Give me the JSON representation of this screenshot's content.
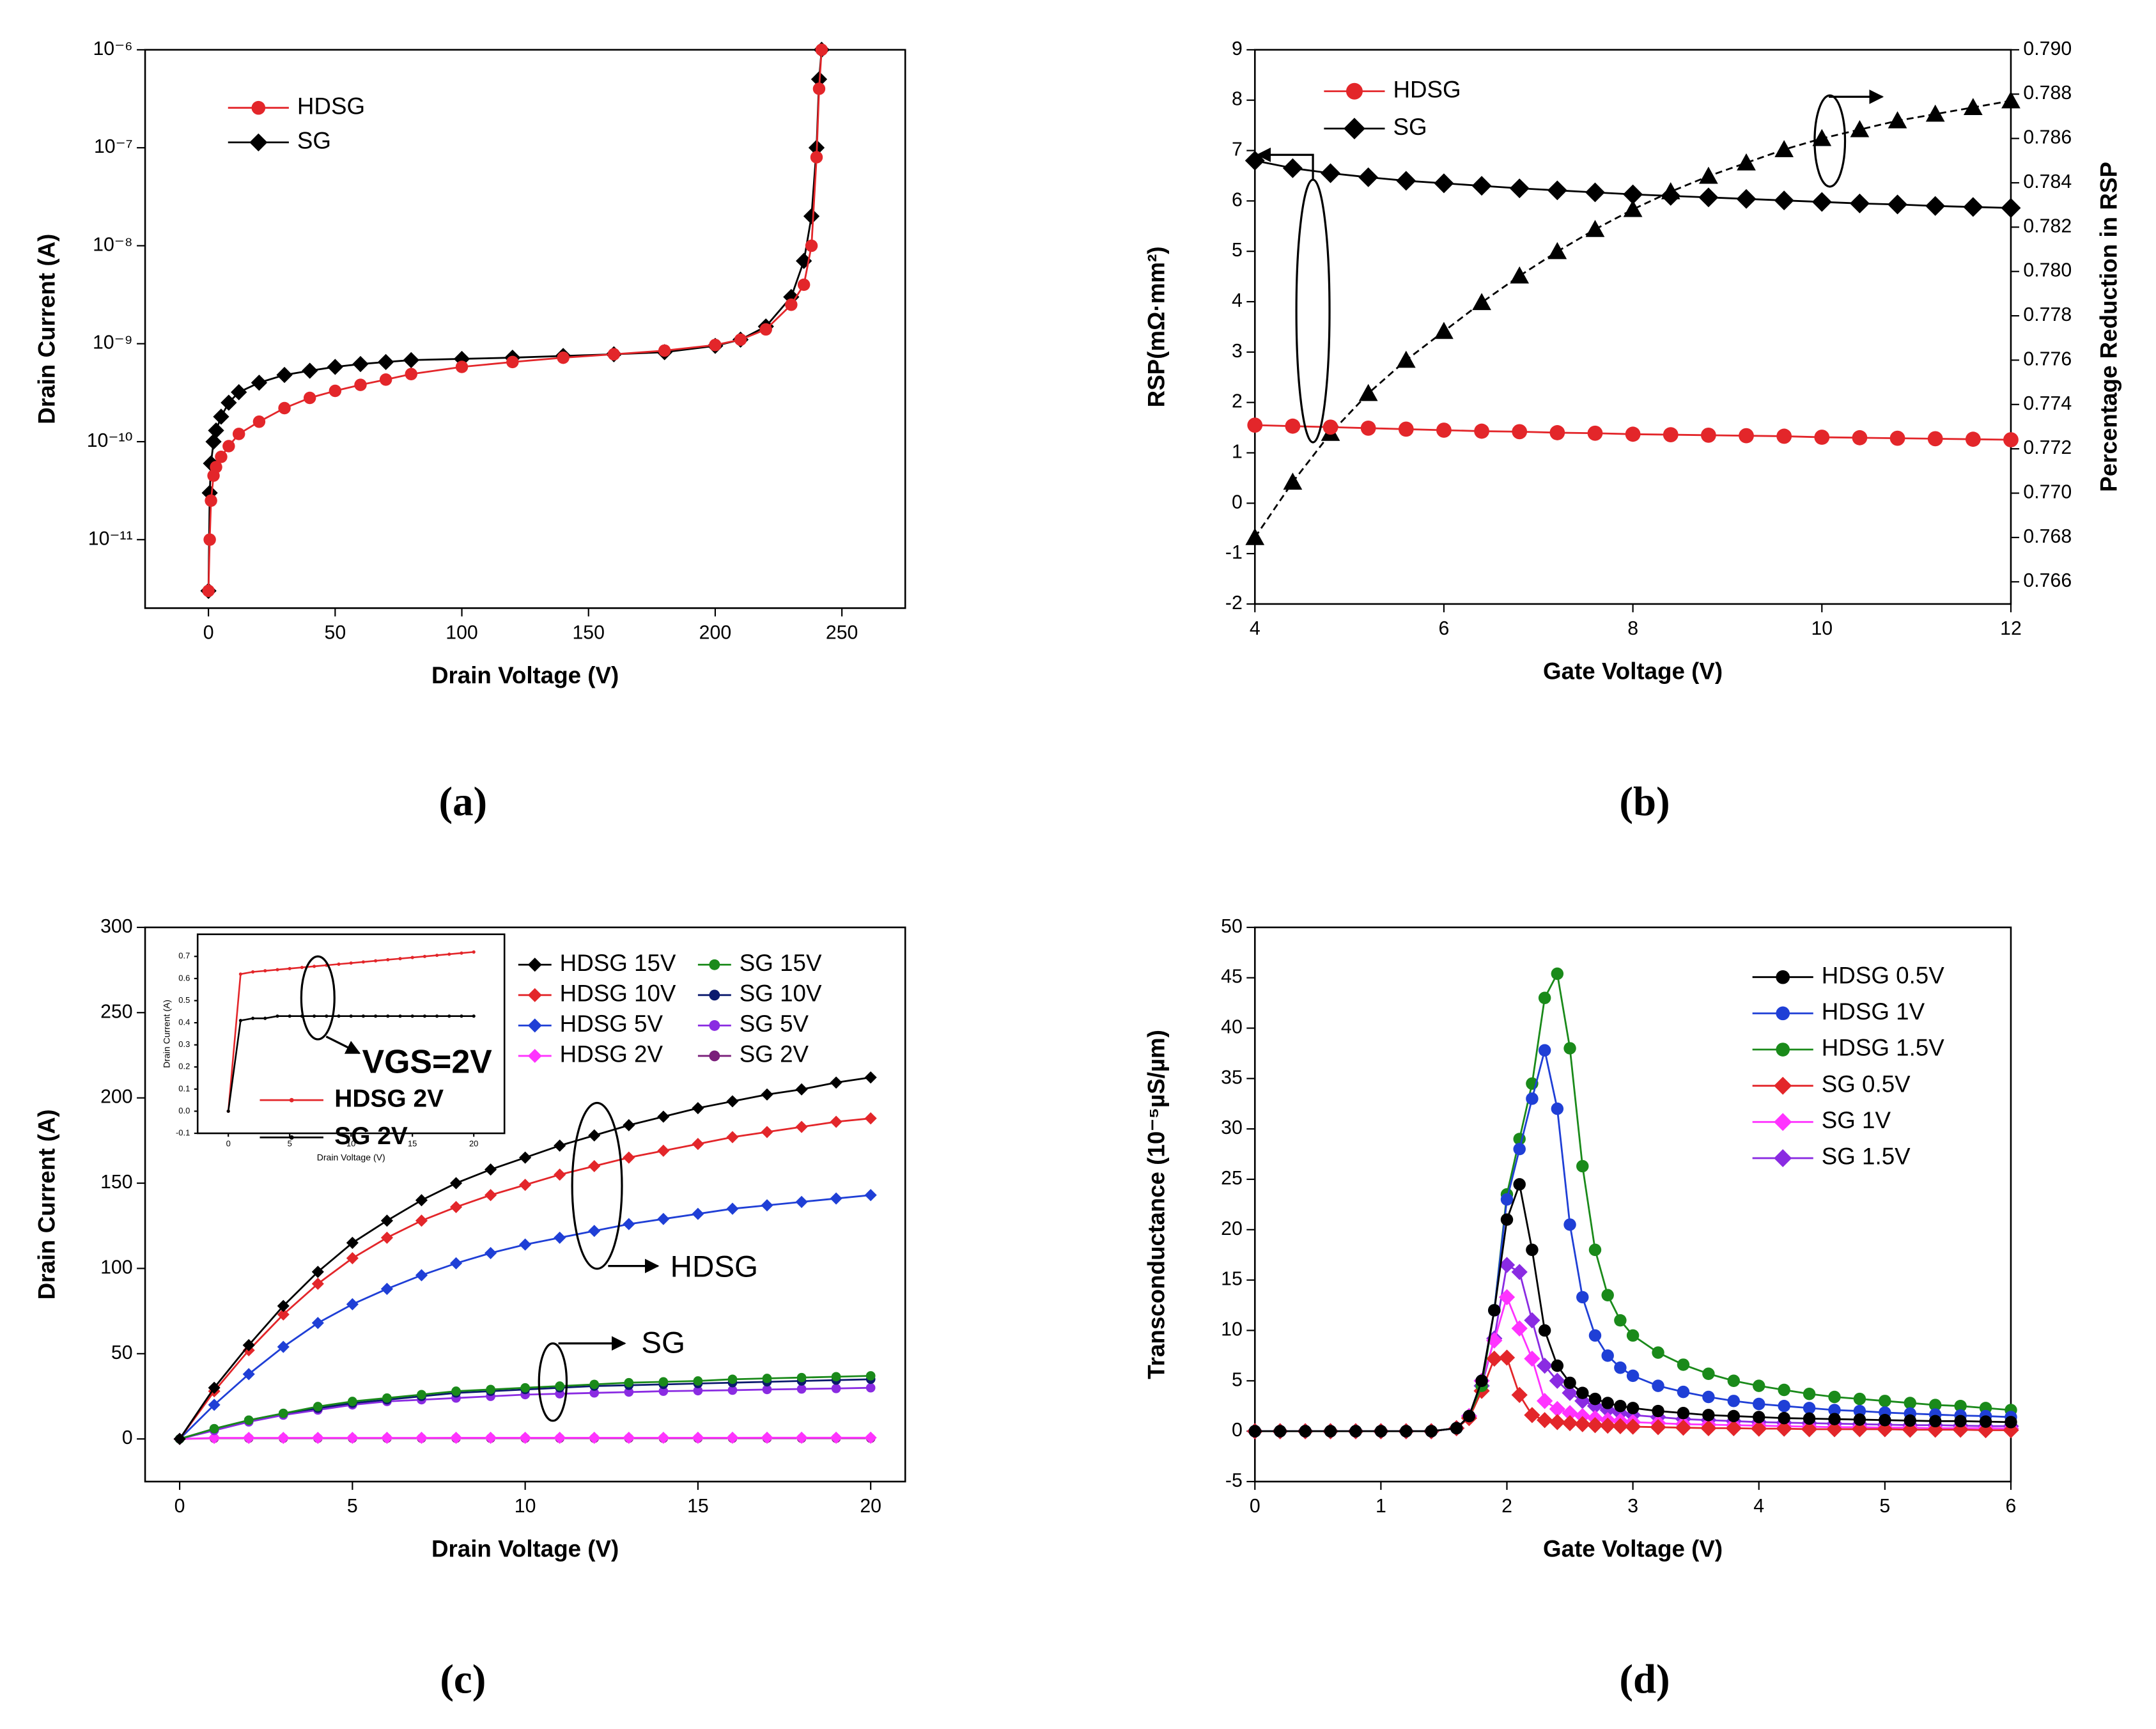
{
  "chart_data": [
    {
      "type": "line",
      "panel_label": "(a)",
      "x_label": "Drain Voltage (V)",
      "y_label": "Drain Current (A)",
      "xlim": [
        -25,
        275
      ],
      "xticks": [
        0,
        50,
        100,
        150,
        200,
        250
      ],
      "ylim": [
        2e-12,
        1e-06
      ],
      "ylog": true,
      "yticks": [
        {
          "value": 1e-11,
          "label": "10⁻¹¹"
        },
        {
          "value": 1e-10,
          "label": "10⁻¹⁰"
        },
        {
          "value": 1e-09,
          "label": "10⁻⁹"
        },
        {
          "value": 1e-08,
          "label": "10⁻⁸"
        },
        {
          "value": 1e-07,
          "label": "10⁻⁷"
        },
        {
          "value": 1e-06,
          "label": "10⁻⁶"
        }
      ],
      "legend": "upper left",
      "x": [
        0,
        0.5,
        1,
        2,
        3,
        5,
        8,
        12,
        20,
        30,
        40,
        50,
        60,
        70,
        80,
        100,
        120,
        140,
        160,
        180,
        200,
        210,
        220,
        230,
        235,
        238,
        240,
        241,
        242
      ],
      "series": [
        {
          "name": "HDSG",
          "color": "#e3262a",
          "marker": "circle",
          "values": [
            3e-12,
            1e-11,
            2.5e-11,
            4.5e-11,
            5.5e-11,
            7e-11,
            9e-11,
            1.2e-10,
            1.6e-10,
            2.2e-10,
            2.8e-10,
            3.3e-10,
            3.8e-10,
            4.3e-10,
            4.9e-10,
            5.8e-10,
            6.5e-10,
            7.2e-10,
            7.8e-10,
            8.5e-10,
            9.7e-10,
            1.1e-09,
            1.4e-09,
            2.5e-09,
            4e-09,
            1e-08,
            8e-08,
            4e-07,
            1e-06
          ]
        },
        {
          "name": "SG",
          "color": "#000000",
          "marker": "diamond",
          "values": [
            3e-12,
            3e-11,
            6e-11,
            1e-10,
            1.3e-10,
            1.8e-10,
            2.5e-10,
            3.2e-10,
            4e-10,
            4.8e-10,
            5.3e-10,
            5.8e-10,
            6.2e-10,
            6.5e-10,
            6.8e-10,
            7e-10,
            7.2e-10,
            7.5e-10,
            7.8e-10,
            8.2e-10,
            9.5e-10,
            1.1e-09,
            1.5e-09,
            3e-09,
            7e-09,
            2e-08,
            1e-07,
            5e-07,
            1e-06
          ]
        }
      ]
    },
    {
      "type": "line",
      "panel_label": "(b)",
      "x_label": "Gate Voltage (V)",
      "y_label": "RSP(mΩ·mm²)",
      "y2_label": "Percentage Reduction in RSP",
      "xlim": [
        4,
        12
      ],
      "xticks": [
        4,
        6,
        8,
        10,
        12
      ],
      "ylim": [
        -2,
        9
      ],
      "yticks": [
        -2,
        -1,
        0,
        1,
        2,
        3,
        4,
        5,
        6,
        7,
        8,
        9
      ],
      "y2lim": [
        0.765,
        0.79
      ],
      "y2ticks": [
        {
          "value": 0.766,
          "label": "0.766"
        },
        {
          "value": 0.768,
          "label": "0.768"
        },
        {
          "value": 0.77,
          "label": "0.770"
        },
        {
          "value": 0.772,
          "label": "0.772"
        },
        {
          "value": 0.774,
          "label": "0.774"
        },
        {
          "value": 0.776,
          "label": "0.776"
        },
        {
          "value": 0.778,
          "label": "0.778"
        },
        {
          "value": 0.78,
          "label": "0.780"
        },
        {
          "value": 0.782,
          "label": "0.782"
        },
        {
          "value": 0.784,
          "label": "0.784"
        },
        {
          "value": 0.786,
          "label": "0.786"
        },
        {
          "value": 0.788,
          "label": "0.788"
        },
        {
          "value": 0.79,
          "label": "0.790"
        }
      ],
      "legend": "upper left",
      "x": [
        4,
        4.4,
        4.8,
        5.2,
        5.6,
        6,
        6.4,
        6.8,
        7.2,
        7.6,
        8,
        8.4,
        8.8,
        9.2,
        9.6,
        10,
        10.4,
        10.8,
        11.2,
        11.6,
        12
      ],
      "series": [
        {
          "name": "HDSG",
          "color": "#e3262a",
          "marker": "circle",
          "values": [
            1.55,
            1.53,
            1.51,
            1.49,
            1.47,
            1.45,
            1.43,
            1.42,
            1.4,
            1.39,
            1.37,
            1.36,
            1.35,
            1.34,
            1.33,
            1.31,
            1.3,
            1.29,
            1.28,
            1.27,
            1.26
          ]
        },
        {
          "name": "SG",
          "color": "#000000",
          "marker": "diamond",
          "values": [
            6.8,
            6.65,
            6.55,
            6.47,
            6.4,
            6.35,
            6.3,
            6.25,
            6.21,
            6.17,
            6.13,
            6.1,
            6.07,
            6.04,
            6.01,
            5.98,
            5.95,
            5.93,
            5.9,
            5.88,
            5.86
          ]
        },
        {
          "color": "#000000",
          "marker": "triangle",
          "line": "dashed",
          "axis": "y2",
          "values": [
            0.768,
            0.7705,
            0.7727,
            0.7745,
            0.776,
            0.7773,
            0.7786,
            0.7798,
            0.7809,
            0.7819,
            0.7828,
            0.7836,
            0.7843,
            0.7849,
            0.7855,
            0.786,
            0.7864,
            0.7868,
            0.7871,
            0.7874,
            0.7877
          ]
        }
      ]
    },
    {
      "type": "line",
      "panel_label": "(c)",
      "x_label": "Drain Voltage (V)",
      "y_label": "Drain Current (A)",
      "xlim": [
        -1,
        21
      ],
      "xticks": [
        0,
        5,
        10,
        15,
        20
      ],
      "ylim": [
        -25,
        300
      ],
      "yticks": [
        0,
        50,
        100,
        150,
        200,
        250,
        300
      ],
      "legend": "upper right",
      "legend_columns": 2,
      "annotations": [
        "HDSG",
        "SG",
        "VGS=2V"
      ],
      "x": [
        0,
        1,
        2,
        3,
        4,
        5,
        6,
        7,
        8,
        9,
        10,
        11,
        12,
        13,
        14,
        15,
        16,
        17,
        18,
        19,
        20
      ],
      "series": [
        {
          "name": "HDSG 15V",
          "color": "#000000",
          "marker": "diamond",
          "values": [
            0,
            30,
            55,
            78,
            98,
            115,
            128,
            140,
            150,
            158,
            165,
            172,
            178,
            184,
            189,
            194,
            198,
            202,
            205,
            209,
            212
          ]
        },
        {
          "name": "SG 15V",
          "color": "#1a8a1a",
          "marker": "circle",
          "values": [
            0,
            6,
            11,
            15,
            19,
            22,
            24,
            26,
            28,
            29,
            30,
            31,
            32,
            33,
            33.5,
            34,
            35,
            35.5,
            36,
            36.5,
            37
          ]
        },
        {
          "name": "HDSG 10V",
          "color": "#e3262a",
          "marker": "diamond",
          "values": [
            0,
            28,
            52,
            73,
            91,
            106,
            118,
            128,
            136,
            143,
            149,
            155,
            160,
            165,
            169,
            173,
            177,
            180,
            183,
            186,
            188
          ]
        },
        {
          "name": "SG 10V",
          "color": "#0b1a6e",
          "marker": "circle",
          "values": [
            0,
            6,
            11,
            15,
            18,
            21,
            23,
            25,
            27,
            28,
            29,
            30,
            31,
            31.5,
            32,
            32.5,
            33,
            33.5,
            34,
            34.5,
            35
          ]
        },
        {
          "name": "HDSG 5V",
          "color": "#1f3fd6",
          "marker": "diamond",
          "values": [
            0,
            20,
            38,
            54,
            68,
            79,
            88,
            96,
            103,
            109,
            114,
            118,
            122,
            126,
            129,
            132,
            135,
            137,
            139,
            141,
            143
          ]
        },
        {
          "name": "SG 5V",
          "color": "#8a2be2",
          "marker": "circle",
          "values": [
            0,
            5,
            10,
            14,
            17,
            20,
            22,
            23,
            24,
            25,
            26,
            26.5,
            27,
            27.5,
            28,
            28.3,
            28.6,
            29,
            29.3,
            29.6,
            30
          ]
        },
        {
          "name": "HDSG 2V",
          "color": "#ff33ff",
          "marker": "diamond",
          "values": [
            0,
            0.62,
            0.63,
            0.635,
            0.64,
            0.645,
            0.65,
            0.655,
            0.66,
            0.665,
            0.67,
            0.675,
            0.68,
            0.685,
            0.69,
            0.695,
            0.7,
            0.705,
            0.71,
            0.715,
            0.72
          ]
        },
        {
          "name": "SG 2V",
          "color": "#7a1f7a",
          "marker": "circle",
          "values": [
            0,
            0.41,
            0.42,
            0.42,
            0.43,
            0.43,
            0.43,
            0.43,
            0.43,
            0.43,
            0.43,
            0.43,
            0.43,
            0.43,
            0.43,
            0.43,
            0.43,
            0.43,
            0.43,
            0.43,
            0.43
          ]
        }
      ],
      "inset": {
        "x_label": "Drain Voltage (V)",
        "y_label": "Drain Current (A)",
        "xlim": [
          -2.5,
          22.5
        ],
        "xticks": [
          0,
          5,
          10,
          15,
          20
        ],
        "ylim": [
          -0.1,
          0.8
        ],
        "yticks": [
          -0.1,
          {
            "value": 0,
            "label": "0.0"
          },
          0.1,
          0.2,
          0.3,
          0.4,
          0.5,
          0.6,
          0.7
        ],
        "colors": [
          "#e3262a",
          "#000000"
        ]
      }
    },
    {
      "type": "line",
      "panel_label": "(d)",
      "x_label": "Gate Voltage (V)",
      "y_label": "Transconductance (10⁻⁵µS/µm)",
      "xlim": [
        0,
        6
      ],
      "xticks": [
        0,
        1,
        2,
        3,
        4,
        5,
        6
      ],
      "ylim": [
        -5,
        50
      ],
      "yticks": [
        -5,
        0,
        5,
        10,
        15,
        20,
        25,
        30,
        35,
        40,
        45,
        50
      ],
      "legend": "upper right",
      "x": [
        0,
        0.2,
        0.4,
        0.6,
        0.8,
        1,
        1.2,
        1.4,
        1.6,
        1.7,
        1.8,
        1.9,
        2,
        2.1,
        2.2,
        2.3,
        2.4,
        2.5,
        2.6,
        2.7,
        2.8,
        2.9,
        3,
        3.2,
        3.4,
        3.6,
        3.8,
        4,
        4.2,
        4.4,
        4.6,
        4.8,
        5,
        5.2,
        5.4,
        5.6,
        5.8,
        6
      ],
      "series": [
        {
          "name": "HDSG 0.5V",
          "color": "#000000",
          "marker": "circle",
          "values": [
            0,
            0,
            0,
            0,
            0,
            0,
            0,
            0,
            0.3,
            1.5,
            5,
            12,
            21,
            24.5,
            18,
            10,
            6.5,
            4.8,
            3.8,
            3.2,
            2.8,
            2.5,
            2.3,
            2,
            1.8,
            1.6,
            1.5,
            1.4,
            1.3,
            1.25,
            1.2,
            1.15,
            1.1,
            1.05,
            1,
            1,
            0.95,
            0.9
          ]
        },
        {
          "name": "HDSG 1V",
          "color": "#1f3fd6",
          "marker": "circle",
          "values": [
            0,
            0,
            0,
            0,
            0,
            0,
            0,
            0,
            0.3,
            1.5,
            5,
            12,
            23,
            28,
            33,
            37.8,
            32,
            20.5,
            13.3,
            9.5,
            7.5,
            6.3,
            5.5,
            4.5,
            3.9,
            3.4,
            3,
            2.7,
            2.5,
            2.3,
            2.1,
            2,
            1.85,
            1.75,
            1.65,
            1.55,
            1.5,
            1.4
          ]
        },
        {
          "name": "HDSG 1.5V",
          "color": "#1a8a1a",
          "marker": "circle",
          "values": [
            0,
            0,
            0,
            0,
            0,
            0,
            0,
            0,
            0.3,
            1.5,
            4.5,
            12,
            23.5,
            29,
            34.5,
            43,
            45.4,
            38,
            26.3,
            18,
            13.5,
            11,
            9.5,
            7.8,
            6.6,
            5.7,
            5,
            4.5,
            4.1,
            3.7,
            3.4,
            3.2,
            3,
            2.8,
            2.6,
            2.5,
            2.3,
            2.1
          ]
        },
        {
          "name": "SG 0.5V",
          "color": "#e3262a",
          "marker": "diamond",
          "values": [
            0,
            0,
            0,
            0,
            0,
            0,
            0,
            0,
            0.3,
            1.3,
            4,
            7.2,
            7.3,
            3.6,
            1.6,
            1.1,
            0.9,
            0.8,
            0.7,
            0.6,
            0.55,
            0.5,
            0.45,
            0.4,
            0.35,
            0.3,
            0.3,
            0.25,
            0.25,
            0.2,
            0.2,
            0.2,
            0.2,
            0.15,
            0.15,
            0.15,
            0.1,
            0.1
          ]
        },
        {
          "name": "SG 1V",
          "color": "#ff33ff",
          "marker": "diamond",
          "values": [
            0,
            0,
            0,
            0,
            0,
            0,
            0,
            0,
            0.3,
            1.5,
            5,
            9,
            13.3,
            10.2,
            7.2,
            3,
            2.2,
            1.8,
            1.5,
            1.3,
            1.1,
            1,
            0.9,
            0.8,
            0.7,
            0.65,
            0.6,
            0.55,
            0.5,
            0.45,
            0.4,
            0.4,
            0.35,
            0.35,
            0.3,
            0.3,
            0.3,
            0.25
          ]
        },
        {
          "name": "SG 1.5V",
          "color": "#8a2be2",
          "marker": "diamond",
          "values": [
            0,
            0,
            0,
            0,
            0,
            0,
            0,
            0,
            0.3,
            1.5,
            4.5,
            9.2,
            16.5,
            15.8,
            11,
            6.5,
            5,
            3.8,
            3,
            2.5,
            2.1,
            1.8,
            1.6,
            1.4,
            1.2,
            1.1,
            1,
            0.9,
            0.85,
            0.8,
            0.75,
            0.7,
            0.65,
            0.6,
            0.6,
            0.55,
            0.5,
            0.5
          ]
        }
      ]
    }
  ]
}
